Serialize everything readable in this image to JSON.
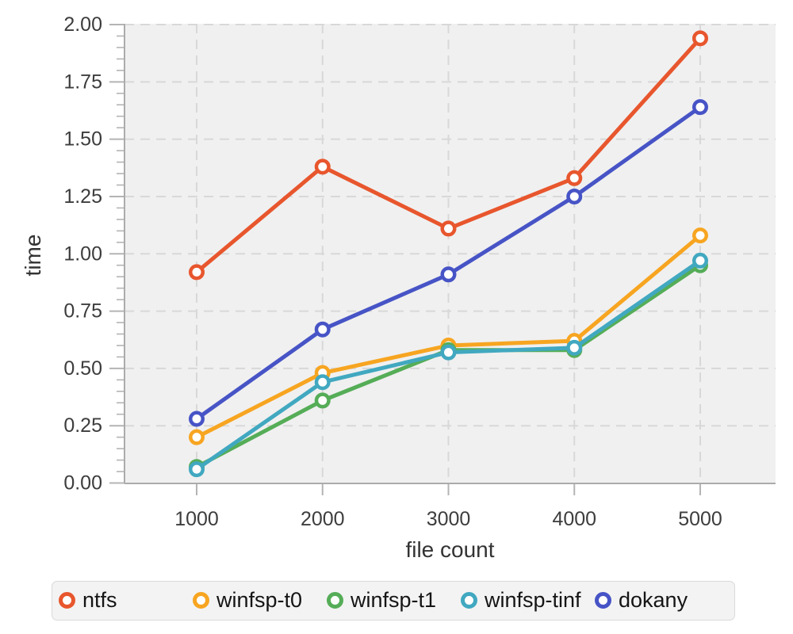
{
  "chart_data": {
    "type": "line",
    "title": "",
    "xlabel": "file count",
    "ylabel": "time",
    "x": [
      1000,
      2000,
      3000,
      4000,
      5000
    ],
    "series": [
      {
        "name": "ntfs",
        "color": "#E8562D",
        "values": [
          0.92,
          1.38,
          1.11,
          1.33,
          1.94
        ]
      },
      {
        "name": "winfsp-t0",
        "color": "#F7A521",
        "values": [
          0.2,
          0.48,
          0.6,
          0.62,
          1.08
        ]
      },
      {
        "name": "winfsp-t1",
        "color": "#55AD57",
        "values": [
          0.07,
          0.36,
          0.58,
          0.58,
          0.95
        ]
      },
      {
        "name": "winfsp-tinf",
        "color": "#41A8C0",
        "values": [
          0.06,
          0.44,
          0.57,
          0.59,
          0.97
        ]
      },
      {
        "name": "dokany",
        "color": "#4754C6",
        "values": [
          0.28,
          0.67,
          0.91,
          1.25,
          1.64
        ]
      }
    ],
    "x_ticks": {
      "values": [
        1000,
        2000,
        3000,
        4000,
        5000
      ],
      "labels": [
        "1000",
        "2000",
        "3000",
        "4000",
        "5000"
      ]
    },
    "y_ticks": {
      "values": [
        0,
        0.25,
        0.5,
        0.75,
        1.0,
        1.25,
        1.5,
        1.75,
        2.0
      ],
      "labels": [
        "0.00",
        "0.25",
        "0.50",
        "0.75",
        "1.00",
        "1.25",
        "1.50",
        "1.75",
        "2.00"
      ]
    },
    "y_minor_step": 0.05,
    "xlim": [
      1000,
      5000
    ],
    "ylim": [
      0,
      2.0
    ],
    "grid": "dashed",
    "marker": "open-circle",
    "legend_position": "bottom"
  }
}
